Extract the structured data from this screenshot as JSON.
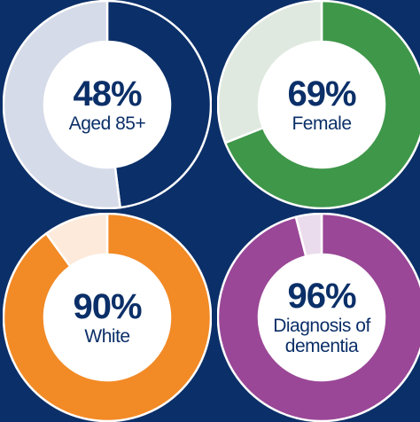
{
  "chart_data": {
    "type": "pie",
    "charts": [
      {
        "value": 48,
        "value_label": "48%",
        "label": "Aged 85+",
        "fill_color": "#0b2f68",
        "rest_color": "#d6dbe9"
      },
      {
        "value": 69,
        "value_label": "69%",
        "label": "Female",
        "fill_color": "#3f974a",
        "rest_color": "#dfe9df"
      },
      {
        "value": 90,
        "value_label": "90%",
        "label": "White",
        "fill_color": "#f28a26",
        "rest_color": "#fdeadb"
      },
      {
        "value": 96,
        "value_label": "96%",
        "label": "Diagnosis of dementia",
        "fill_color": "#9a4797",
        "rest_color": "#eadcec"
      }
    ]
  },
  "colors": {
    "background": "#0b2f68",
    "ring_border": "#ffffff",
    "center": "#ffffff",
    "text": "#0b2f68"
  }
}
